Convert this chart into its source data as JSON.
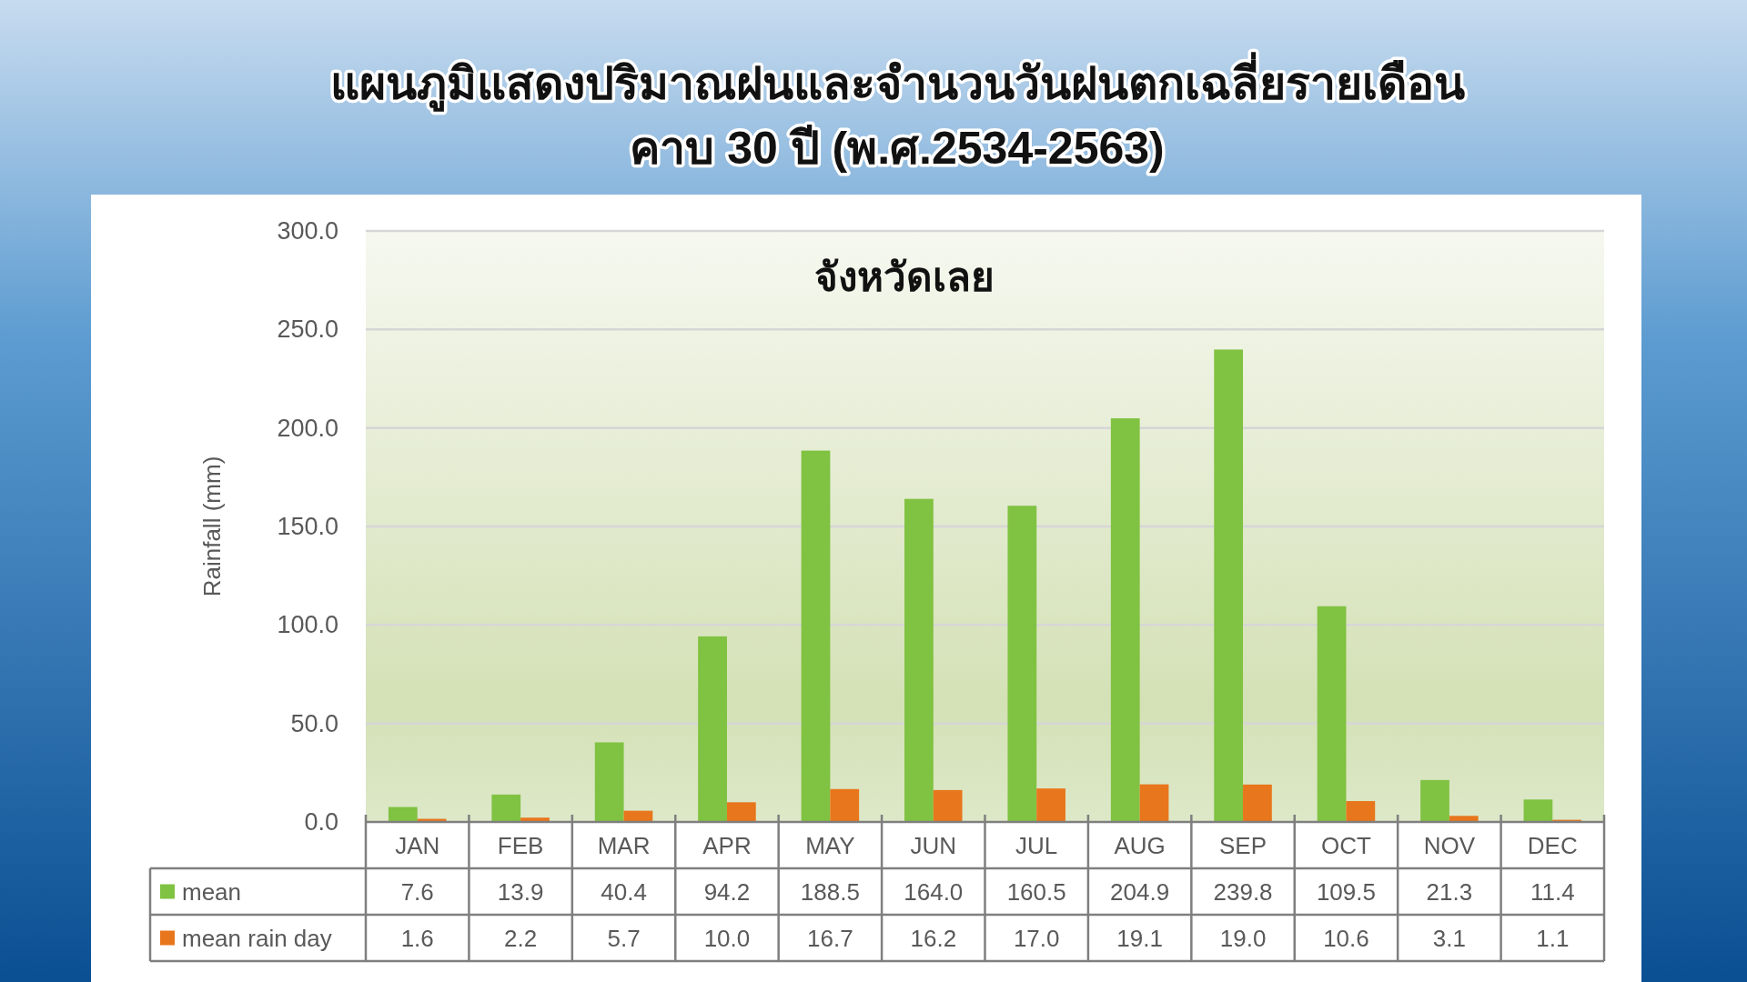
{
  "chart_data": {
    "type": "bar",
    "title": "แผนภูมิแสดงปริมาณฝนและจำนวนวันฝนตกเฉลี่ยรายเดือน\nคาบ 30 ปี (พ.ศ.2534-2563)",
    "subtitle": "จังหวัดเลย",
    "ylabel": "Rainfall (mm)",
    "categories": [
      "JAN",
      "FEB",
      "MAR",
      "APR",
      "MAY",
      "JUN",
      "JUL",
      "AUG",
      "SEP",
      "OCT",
      "NOV",
      "DEC"
    ],
    "series": [
      {
        "name": "mean",
        "color": "#80c241",
        "values": [
          7.6,
          13.9,
          40.4,
          94.2,
          188.5,
          164.0,
          160.5,
          204.9,
          239.8,
          109.5,
          21.3,
          11.4
        ],
        "value_labels": [
          "7.6",
          "13.9",
          "40.4",
          "94.2",
          "188.5",
          "164.0",
          "160.5",
          "204.9",
          "239.8",
          "109.5",
          "21.3",
          "11.4"
        ]
      },
      {
        "name": "mean rain day",
        "color": "#e8761c",
        "values": [
          1.6,
          2.2,
          5.7,
          10.0,
          16.7,
          16.2,
          17.0,
          19.1,
          19.0,
          10.6,
          3.1,
          1.1
        ],
        "value_labels": [
          "1.6",
          "2.2",
          "5.7",
          "10.0",
          "16.7",
          "16.2",
          "17.0",
          "19.1",
          "19.0",
          "10.6",
          "3.1",
          "1.1"
        ]
      }
    ],
    "ylim": [
      0,
      300
    ],
    "yticks": [
      {
        "value": 0,
        "label": "0.0"
      },
      {
        "value": 50,
        "label": "50.0"
      },
      {
        "value": 100,
        "label": "100.0"
      },
      {
        "value": 150,
        "label": "150.0"
      },
      {
        "value": 200,
        "label": "200.0"
      },
      {
        "value": 250,
        "label": "250.0"
      },
      {
        "value": 300,
        "label": "300.0"
      }
    ],
    "grid": "y",
    "legend": "bottom"
  }
}
